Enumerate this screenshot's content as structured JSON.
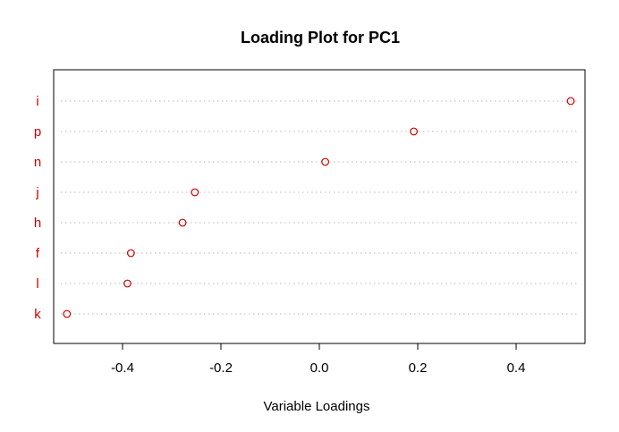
{
  "chart_data": {
    "type": "scatter",
    "title": "Loading Plot for PC1",
    "xlabel": "Variable Loadings",
    "ylabel": "",
    "xlim": [
      -0.54,
      0.54
    ],
    "xticks": [
      -0.4,
      -0.2,
      0.0,
      0.2,
      0.4
    ],
    "xtick_labels": [
      "-0.4",
      "-0.2",
      "0.0",
      "0.2",
      "0.4"
    ],
    "grid": "horizontal dotted",
    "categories": [
      "i",
      "p",
      "n",
      "j",
      "h",
      "f",
      "l",
      "k"
    ],
    "values": [
      0.511,
      0.192,
      0.012,
      -0.253,
      -0.278,
      -0.383,
      -0.39,
      -0.513
    ],
    "colors": {
      "points": "#cc0000",
      "labels": "#cc0000",
      "grid": "#c8c8c8",
      "axis": "#000000"
    }
  }
}
